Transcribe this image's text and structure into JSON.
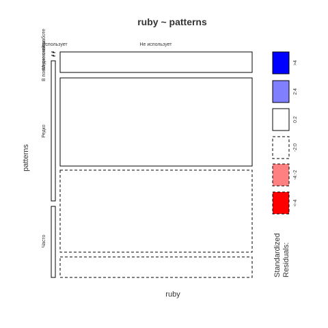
{
  "chart_data": {
    "type": "mosaic",
    "title": "ruby ~ patterns",
    "xlabel": "ruby",
    "ylabel": "patterns",
    "x_categories": [
      "Использует",
      "Не использует"
    ],
    "y_categories": [
      "В повседневной работе",
      "Много схемы",
      "Редко",
      "Часто"
    ],
    "x_proportions": [
      0.015,
      0.985
    ],
    "y_proportions": [
      0.015,
      0.015,
      0.53,
      0.44
    ],
    "cells": [
      {
        "y": "Много схемы",
        "x": "Не использует",
        "residual": "0:2",
        "border": "solid"
      },
      {
        "y": "Редко",
        "x": "Не использует",
        "residual": "0:2",
        "border": "solid"
      },
      {
        "y": "Часто",
        "x": "Не использует",
        "residual": "-2:0",
        "border": "dashed"
      },
      {
        "y": "Часто (2)",
        "x": "Не использует",
        "residual": "-2:0",
        "border": "dashed"
      }
    ],
    "legend": {
      "title": "Standardized Residuals:",
      "placement": "right",
      "entries": [
        {
          "label": ">4",
          "color": "#0000ff",
          "border": "solid"
        },
        {
          "label": "2:4",
          "color": "#8080ff",
          "border": "solid"
        },
        {
          "label": "0:2",
          "color": "#ffffff",
          "border": "solid"
        },
        {
          "label": "-2:0",
          "color": "#ffffff",
          "border": "dashed"
        },
        {
          "label": "-4:-2",
          "color": "#ff8080",
          "border": "dashed"
        },
        {
          "label": "<-4",
          "color": "#ff0000",
          "border": "dashed"
        }
      ]
    }
  }
}
